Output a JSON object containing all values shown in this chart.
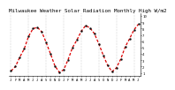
{
  "title": "Milwaukee Weather Solar Radiation Monthly High W/m2",
  "values": [
    130,
    200,
    350,
    480,
    680,
    800,
    820,
    750,
    580,
    400,
    210,
    110,
    150,
    310,
    500,
    620,
    760,
    850,
    810,
    720,
    560,
    380,
    220,
    120,
    180,
    320,
    510,
    640,
    780,
    870
  ],
  "line_color": "#dd0000",
  "marker_color": "#111111",
  "bg_color": "#ffffff",
  "ylim": [
    50,
    1050
  ],
  "ytick_values": [
    100,
    200,
    300,
    400,
    500,
    600,
    700,
    800,
    900,
    1000
  ],
  "ytick_labels": [
    "1",
    "2",
    "3",
    "4",
    "5",
    "6",
    "7",
    "8",
    "9",
    "10"
  ],
  "grid_color": "#999999",
  "title_fontsize": 4.2,
  "tick_fontsize": 2.8,
  "vgrid_positions": [
    0,
    4,
    8,
    12,
    16,
    20,
    24,
    28
  ]
}
